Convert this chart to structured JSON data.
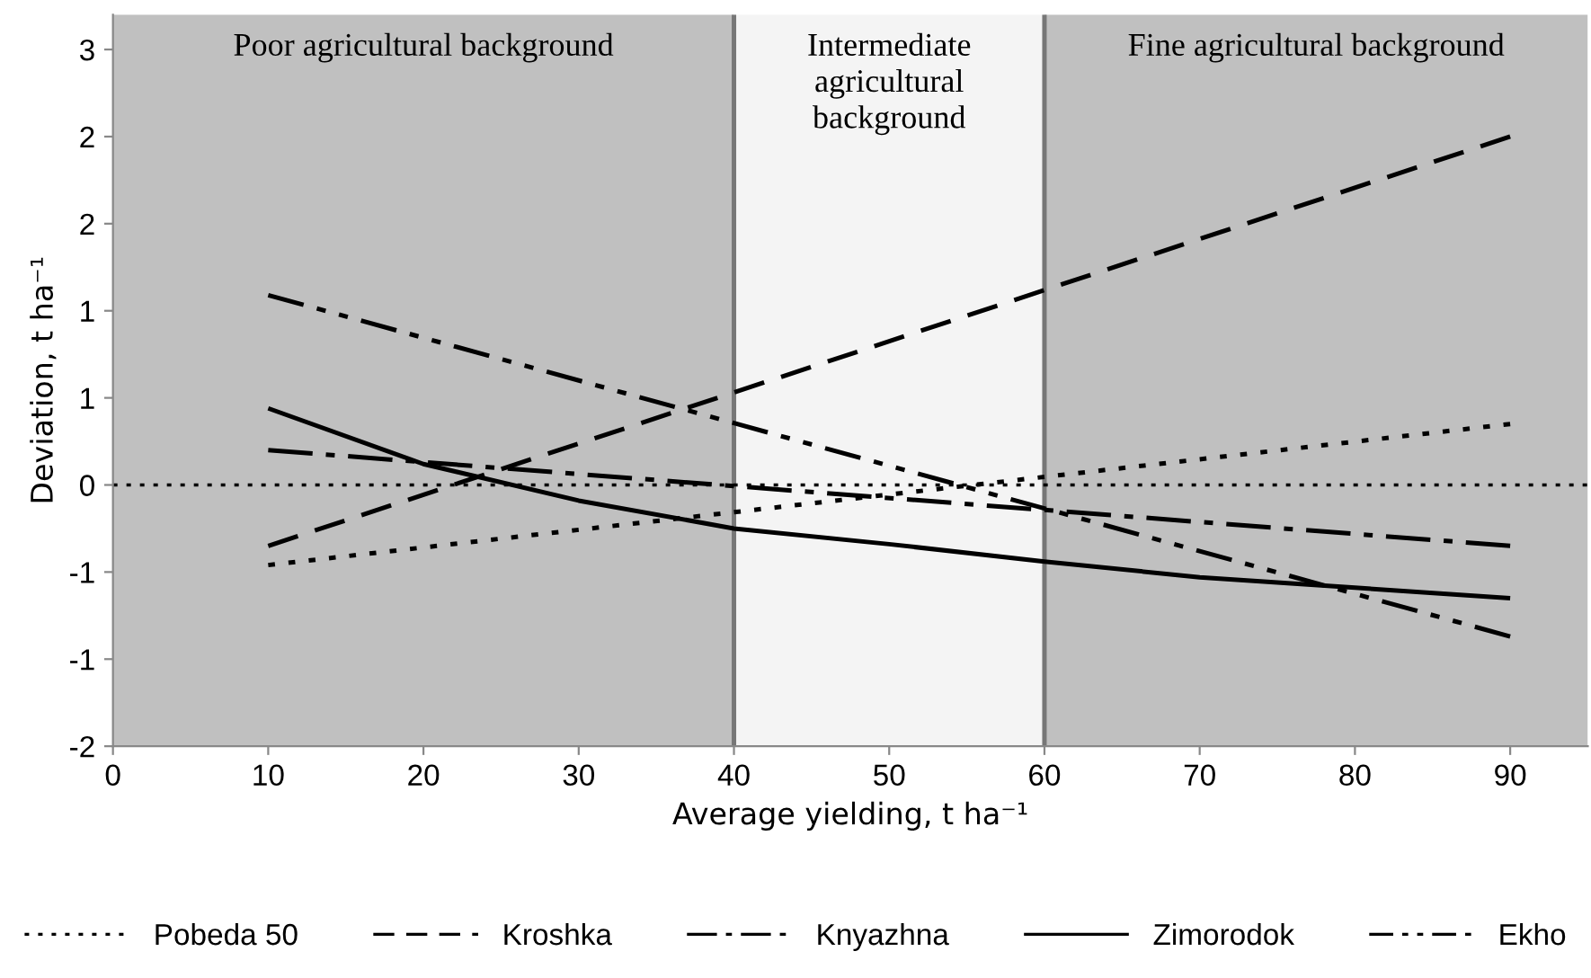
{
  "chart_data": {
    "type": "line",
    "xlabel": "Average yielding, t ha⁻¹",
    "ylabel": "Deviation, t ha⁻¹",
    "xlim": [
      0,
      95
    ],
    "xticks": [
      0,
      10,
      20,
      30,
      40,
      50,
      60,
      70,
      80,
      90
    ],
    "ylim": [
      -1.5,
      2.7
    ],
    "yticks": [
      {
        "value": -1.5,
        "label": "-2"
      },
      {
        "value": -1,
        "label": "-1"
      },
      {
        "value": -0.5,
        "label": "-1"
      },
      {
        "value": 0,
        "label": "0"
      },
      {
        "value": 0.5,
        "label": "1"
      },
      {
        "value": 1,
        "label": "1"
      },
      {
        "value": 1.5,
        "label": "2"
      },
      {
        "value": 2,
        "label": "2"
      },
      {
        "value": 2.5,
        "label": "3"
      }
    ],
    "grid": false,
    "legend": "bottom",
    "bands": [
      {
        "axis": "x",
        "from": 0,
        "to": 40,
        "label": "Poor agricultural background",
        "color": "#c0c0c0"
      },
      {
        "axis": "x",
        "from": 40,
        "to": 60,
        "label": "Intermediate\nagricultural\nbackground",
        "color": "#f4f4f4"
      },
      {
        "axis": "x",
        "from": 60,
        "to": 95,
        "label": "Fine agricultural background",
        "color": "#c0c0c0"
      }
    ],
    "ref_lines": [
      {
        "axis": "y",
        "value": 0,
        "color": "#000000",
        "line_style": "dotted"
      },
      {
        "axis": "x",
        "value": 40,
        "color": "#777777",
        "line_style": "solid"
      },
      {
        "axis": "x",
        "value": 60,
        "color": "#777777",
        "line_style": "solid"
      }
    ],
    "series": [
      {
        "name": "Pobeda 50",
        "color": "#000000",
        "line_style": "dotted",
        "x": [
          10,
          90
        ],
        "values": [
          -0.46,
          0.35
        ]
      },
      {
        "name": "Kroshka",
        "color": "#000000",
        "line_style": "dashed",
        "x": [
          10,
          90
        ],
        "values": [
          -0.35,
          2.0
        ]
      },
      {
        "name": "Knyazhna",
        "color": "#000000",
        "line_style": "dashdot",
        "x": [
          10,
          90
        ],
        "values": [
          0.2,
          -0.35
        ]
      },
      {
        "name": "Zimorodok",
        "color": "#000000",
        "line_style": "solid",
        "x": [
          10,
          20,
          30,
          40,
          50,
          60,
          70,
          80,
          90
        ],
        "values": [
          0.44,
          0.12,
          -0.09,
          -0.25,
          -0.34,
          -0.44,
          -0.53,
          -0.59,
          -0.65
        ]
      },
      {
        "name": "Ekho",
        "color": "#000000",
        "line_style": "dashdotdot",
        "x": [
          10,
          90
        ],
        "values": [
          1.09,
          -0.87
        ]
      }
    ]
  }
}
